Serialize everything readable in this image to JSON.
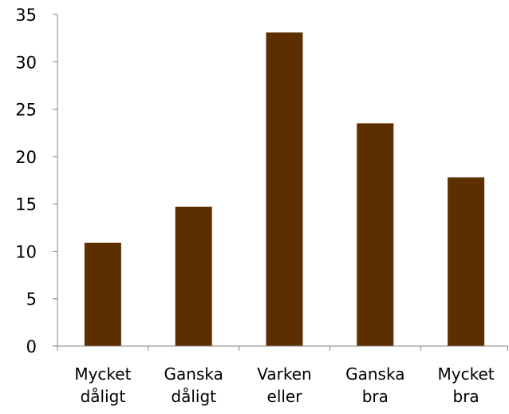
{
  "chart_data": {
    "type": "bar",
    "title": "",
    "xlabel": "",
    "ylabel": "",
    "categories": [
      [
        "Mycket",
        "dåligt"
      ],
      [
        "Ganska",
        "dåligt"
      ],
      [
        "Varken",
        "eller"
      ],
      [
        "Ganska",
        "bra"
      ],
      [
        "Mycket",
        "bra"
      ]
    ],
    "values": [
      10.9,
      14.7,
      33.1,
      23.5,
      17.8
    ],
    "ylim": [
      0,
      35
    ],
    "yticks": [
      "0",
      "5",
      "10",
      "15",
      "20",
      "25",
      "30",
      "35"
    ],
    "grid": false,
    "legend": "none",
    "colors": {
      "bar": "#5C2E00",
      "axis": "#868686"
    }
  }
}
